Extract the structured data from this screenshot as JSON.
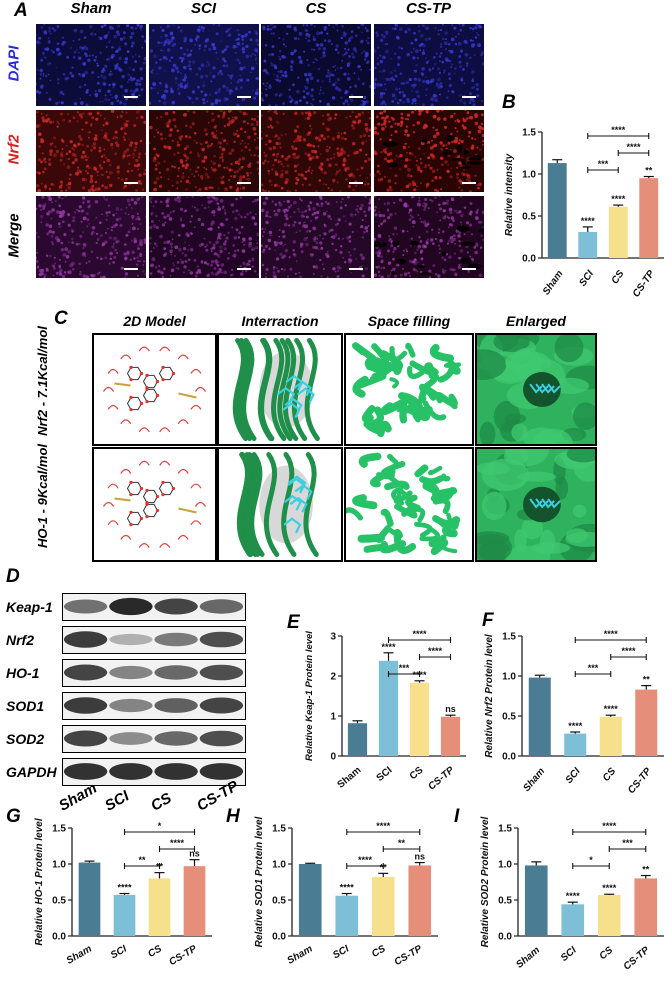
{
  "panels": {
    "A": "A",
    "B": "B",
    "C": "C",
    "D": "D",
    "E": "E",
    "F": "F",
    "G": "G",
    "H": "H",
    "I": "I"
  },
  "groups": [
    "Sham",
    "SCI",
    "CS",
    "CS-TP"
  ],
  "panelA": {
    "rows": [
      "DAPI",
      "Nrf2",
      "Merge"
    ],
    "row_colors": [
      "#2a2ad6",
      "#d81e1e",
      "#000000"
    ]
  },
  "panelC": {
    "columns": [
      "2D Model",
      "Interraction",
      "Space filling",
      "Enlarged"
    ],
    "rows": [
      "Nrf2 - 7.1Kcal/mol",
      "HO-1 - 9Kcal/mol"
    ],
    "colors": {
      "protein": "#27c267",
      "ligand": "#3ad0e0"
    }
  },
  "panelD": {
    "proteins": [
      "Keap-1",
      "Nrf2",
      "HO-1",
      "SOD1",
      "SOD2",
      "GAPDH"
    ]
  },
  "colors": {
    "Sham": "#4a7d93",
    "SCI": "#7dbfd6",
    "CS": "#f6e08c",
    "CS-TP": "#e58e7a"
  },
  "chart_data": [
    {
      "id": "B",
      "type": "bar",
      "ylabel": "Relative intensity",
      "categories": [
        "Sham",
        "SCI",
        "CS",
        "CS-TP"
      ],
      "values": [
        1.13,
        0.31,
        0.61,
        0.95
      ],
      "errors": [
        0.04,
        0.06,
        0.02,
        0.02
      ],
      "ylim": [
        0,
        1.5
      ],
      "yticks": [
        "0.0",
        "0.5",
        "1.0",
        "1.5"
      ],
      "tickvals": [
        0,
        0.5,
        1,
        1.5
      ],
      "stars": [
        "",
        "****",
        "****",
        "**"
      ],
      "comparisons": [
        {
          "from": 1,
          "to": 3,
          "label": "****",
          "level": 0
        },
        {
          "from": 2,
          "to": 3,
          "label": "****",
          "level": 1
        },
        {
          "from": 1,
          "to": 2,
          "label": "***",
          "level": 2
        }
      ]
    },
    {
      "id": "E",
      "type": "bar",
      "ylabel": "Relative Keap-1 Protein level",
      "categories": [
        "Sham",
        "SCI",
        "CS",
        "CS-TP"
      ],
      "values": [
        0.82,
        2.38,
        1.83,
        0.98
      ],
      "errors": [
        0.06,
        0.2,
        0.05,
        0.04
      ],
      "ylim": [
        0,
        3
      ],
      "yticks": [
        "0",
        "1",
        "2",
        "3"
      ],
      "tickvals": [
        0,
        1,
        2,
        3
      ],
      "stars": [
        "",
        "****",
        "****",
        "ns"
      ],
      "comparisons": [
        {
          "from": 1,
          "to": 3,
          "label": "****",
          "level": 0
        },
        {
          "from": 2,
          "to": 3,
          "label": "****",
          "level": 1
        },
        {
          "from": 1,
          "to": 2,
          "label": "***",
          "level": 2
        }
      ]
    },
    {
      "id": "F",
      "type": "bar",
      "ylabel": "Relative Nrf2 Protein level",
      "categories": [
        "Sham",
        "SCI",
        "CS",
        "CS-TP"
      ],
      "values": [
        0.98,
        0.28,
        0.49,
        0.83
      ],
      "errors": [
        0.03,
        0.02,
        0.02,
        0.05
      ],
      "ylim": [
        0,
        1.5
      ],
      "yticks": [
        "0.0",
        "0.5",
        "1.0",
        "1.5"
      ],
      "tickvals": [
        0,
        0.5,
        1,
        1.5
      ],
      "stars": [
        "",
        "****",
        "****",
        "**"
      ],
      "comparisons": [
        {
          "from": 1,
          "to": 3,
          "label": "****",
          "level": 0
        },
        {
          "from": 2,
          "to": 3,
          "label": "****",
          "level": 1
        },
        {
          "from": 1,
          "to": 2,
          "label": "***",
          "level": 2
        }
      ]
    },
    {
      "id": "G",
      "type": "bar",
      "ylabel": "Relative HO-1 Protein level",
      "categories": [
        "Sham",
        "SCI",
        "CS",
        "CS-TP"
      ],
      "values": [
        1.02,
        0.57,
        0.8,
        0.97
      ],
      "errors": [
        0.02,
        0.02,
        0.08,
        0.09
      ],
      "ylim": [
        0,
        1.5
      ],
      "yticks": [
        "0.0",
        "0.5",
        "1.0",
        "1.5"
      ],
      "tickvals": [
        0,
        0.5,
        1,
        1.5
      ],
      "stars": [
        "",
        "****",
        "**",
        "ns"
      ],
      "comparisons": [
        {
          "from": 1,
          "to": 3,
          "label": "*",
          "level": 0
        },
        {
          "from": 2,
          "to": 3,
          "label": "****",
          "level": 1
        },
        {
          "from": 1,
          "to": 2,
          "label": "**",
          "level": 2
        }
      ]
    },
    {
      "id": "H",
      "type": "bar",
      "ylabel": "Relative SOD1 Protein level",
      "categories": [
        "Sham",
        "SCI",
        "CS",
        "CS-TP"
      ],
      "values": [
        1.0,
        0.56,
        0.82,
        0.98
      ],
      "errors": [
        0.01,
        0.03,
        0.05,
        0.04
      ],
      "ylim": [
        0,
        1.5
      ],
      "yticks": [
        "0.0",
        "0.5",
        "1.0",
        "1.5"
      ],
      "tickvals": [
        0,
        0.5,
        1,
        1.5
      ],
      "stars": [
        "",
        "****",
        "**",
        "ns"
      ],
      "comparisons": [
        {
          "from": 1,
          "to": 3,
          "label": "****",
          "level": 0
        },
        {
          "from": 2,
          "to": 3,
          "label": "**",
          "level": 1
        },
        {
          "from": 1,
          "to": 2,
          "label": "****",
          "level": 2
        }
      ]
    },
    {
      "id": "I",
      "type": "bar",
      "ylabel": "Relative SOD2 Protein level",
      "categories": [
        "Sham",
        "SCI",
        "CS",
        "CS-TP"
      ],
      "values": [
        0.98,
        0.44,
        0.57,
        0.8
      ],
      "errors": [
        0.05,
        0.03,
        0.01,
        0.04
      ],
      "ylim": [
        0,
        1.5
      ],
      "yticks": [
        "0.0",
        "0.5",
        "1.0",
        "1.5"
      ],
      "tickvals": [
        0,
        0.5,
        1,
        1.5
      ],
      "stars": [
        "",
        "****",
        "****",
        "**"
      ],
      "comparisons": [
        {
          "from": 1,
          "to": 3,
          "label": "****",
          "level": 0
        },
        {
          "from": 2,
          "to": 3,
          "label": "***",
          "level": 1
        },
        {
          "from": 1,
          "to": 2,
          "label": "*",
          "level": 2
        }
      ]
    }
  ]
}
